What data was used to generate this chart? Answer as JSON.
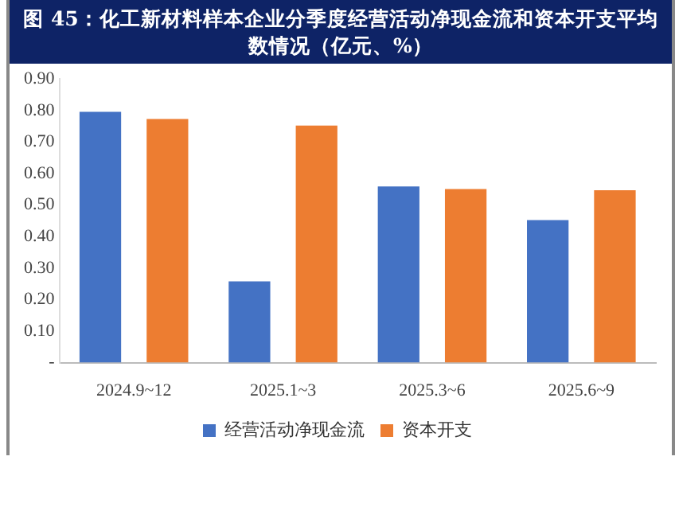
{
  "chart_data": {
    "type": "bar",
    "title": "图 45：化工新材料样本企业分季度经营活动净现金流和资本开支平均数情况（亿元、%）",
    "categories": [
      "2024.9~12",
      "2025.1~3",
      "2025.3~6",
      "2025.6~9"
    ],
    "series": [
      {
        "name": "经营活动净现金流",
        "color": "#4472c4",
        "values": [
          0.796,
          0.258,
          0.559,
          0.452
        ]
      },
      {
        "name": "资本开支",
        "color": "#ed7d31",
        "values": [
          0.773,
          0.752,
          0.551,
          0.547
        ]
      }
    ],
    "ylim": [
      0,
      0.9
    ],
    "yticks": [
      {
        "value": 0,
        "label": "-"
      },
      {
        "value": 0.1,
        "label": "0.10"
      },
      {
        "value": 0.2,
        "label": "0.20"
      },
      {
        "value": 0.3,
        "label": "0.30"
      },
      {
        "value": 0.4,
        "label": "0.40"
      },
      {
        "value": 0.5,
        "label": "0.50"
      },
      {
        "value": 0.6,
        "label": "0.60"
      },
      {
        "value": 0.7,
        "label": "0.70"
      },
      {
        "value": 0.8,
        "label": "0.80"
      },
      {
        "value": 0.9,
        "label": "0.90"
      }
    ],
    "grid": false,
    "legend": "bottom"
  }
}
